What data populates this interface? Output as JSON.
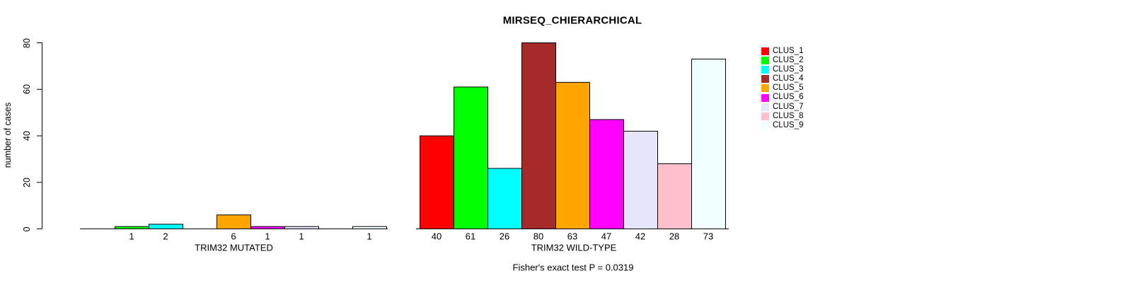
{
  "title": "MIRSEQ_CHIERARCHICAL",
  "footnote": "Fisher's exact test P = 0.0319",
  "y_axis": {
    "label": "number of cases",
    "ticks": [
      0,
      20,
      40,
      60,
      80
    ]
  },
  "chart_data": {
    "type": "bar",
    "title": "MIRSEQ_CHIERARCHICAL",
    "ylabel": "number of cases",
    "ylim": [
      0,
      80
    ],
    "yticks": [
      0,
      20,
      40,
      60,
      80
    ],
    "grid": false,
    "legend_position": "right",
    "categories": [
      "CLUS_1",
      "CLUS_2",
      "CLUS_3",
      "CLUS_4",
      "CLUS_5",
      "CLUS_6",
      "CLUS_7",
      "CLUS_8",
      "CLUS_9"
    ],
    "colors": [
      "#FF0000",
      "#00FF00",
      "#00FFFF",
      "#A52A2A",
      "#FFA500",
      "#FF00FF",
      "#E6E6FA",
      "#FFC0CB",
      "#F0FFFF"
    ],
    "series": [
      {
        "name": "TRIM32 MUTATED",
        "values": [
          0,
          1,
          2,
          0,
          6,
          1,
          1,
          0,
          1
        ]
      },
      {
        "name": "TRIM32 WILD-TYPE",
        "values": [
          40,
          61,
          26,
          80,
          63,
          47,
          42,
          28,
          73
        ]
      }
    ],
    "bar_labels": "values shown under each nonzero bar",
    "annotation": "Fisher's exact test P = 0.0319"
  }
}
